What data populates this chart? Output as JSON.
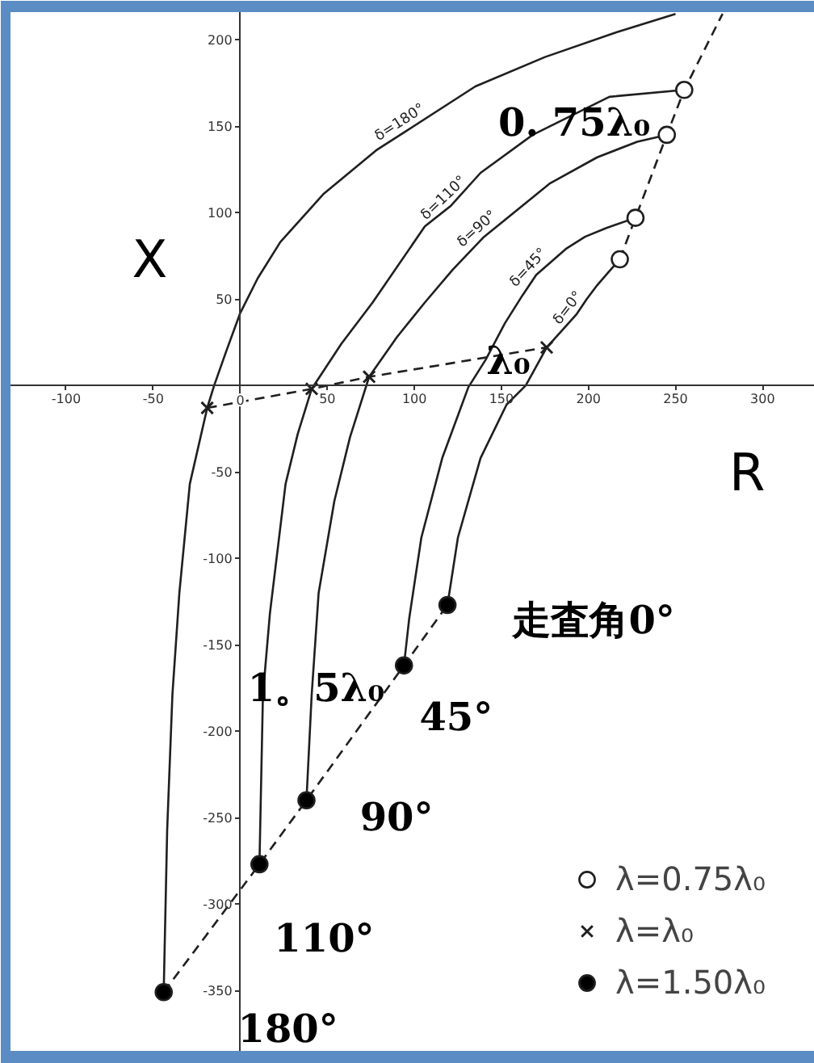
{
  "chart_data": {
    "type": "line",
    "xlabel": "R",
    "ylabel": "X",
    "xlim": [
      -132,
      330
    ],
    "ylim": [
      -385,
      216
    ],
    "xticks": [
      -100,
      -50,
      0,
      50,
      100,
      150,
      200,
      250,
      300
    ],
    "yticks": [
      -350,
      -300,
      -250,
      -200,
      -150,
      -100,
      -50,
      50,
      100,
      150,
      200
    ],
    "legend": "bottom right",
    "line_style": "solid",
    "series": [
      {
        "name": "δ=180°",
        "color": "#1f1f1f",
        "x": [
          -44,
          -42,
          -39,
          -35,
          -29,
          -19,
          -15,
          -8,
          0,
          10,
          23,
          48,
          78,
          95,
          135,
          175,
          215,
          250
        ],
        "values": [
          -351,
          -257,
          -179,
          -120,
          -57,
          -13,
          0,
          20,
          42,
          62,
          83,
          111,
          136,
          147,
          173,
          190,
          204,
          215
        ]
      },
      {
        "name": "δ=110°",
        "color": "#1f1f1f",
        "x": [
          11,
          13,
          17,
          26,
          33,
          41,
          58,
          76,
          106,
          121,
          138,
          168,
          212,
          255
        ],
        "values": [
          -277,
          -179,
          -132,
          -57,
          -28,
          -2,
          24,
          48,
          92,
          104,
          123,
          145,
          167,
          171
        ]
      },
      {
        "name": "δ=90°",
        "color": "#1f1f1f",
        "x": [
          38,
          41,
          45,
          54,
          63,
          74,
          90,
          106,
          122,
          140,
          178,
          205,
          228,
          245
        ],
        "values": [
          -240,
          -179,
          -120,
          -67,
          -30,
          5,
          28,
          48,
          67,
          86,
          117,
          132,
          141,
          145
        ]
      },
      {
        "name": "δ=45°",
        "color": "#1f1f1f",
        "x": [
          94,
          97,
          104,
          116,
          131,
          141,
          152,
          162,
          170,
          187,
          198,
          210,
          227
        ],
        "values": [
          -162,
          -135,
          -88,
          -42,
          -1,
          15,
          36,
          52,
          64,
          79,
          86,
          91,
          97
        ]
      },
      {
        "name": "δ=0°",
        "color": "#1f1f1f",
        "x": [
          119,
          125,
          138,
          153,
          164,
          176,
          185,
          193,
          199,
          205,
          211,
          218
        ],
        "values": [
          -127,
          -88,
          -42,
          -11,
          0,
          22,
          32,
          41,
          50,
          58,
          65,
          73
        ]
      },
      {
        "type": "line",
        "line_style": "dashed",
        "color": "#1f1f1f",
        "x": [
          218,
          227,
          245,
          255,
          277
        ],
        "values": [
          73,
          97,
          145,
          171,
          215
        ]
      },
      {
        "type": "line",
        "line_style": "dashed",
        "color": "#1f1f1f",
        "x": [
          -19,
          41,
          74,
          176
        ],
        "values": [
          -13,
          -2,
          5,
          22
        ]
      },
      {
        "type": "line",
        "line_style": "dashed",
        "color": "#1f1f1f",
        "x": [
          -44,
          11,
          38,
          94,
          119
        ],
        "values": [
          -351,
          -277,
          -240,
          -162,
          -127
        ]
      },
      {
        "type": "scatter",
        "name": "λ=0.75λ₀",
        "marker": "circle",
        "color": "#ffffff",
        "x": [
          218,
          227,
          245,
          255
        ],
        "values": [
          73,
          97,
          145,
          171
        ]
      },
      {
        "type": "scatter",
        "name": "λ=λ₀",
        "marker": "cross",
        "color": "#1f1f1f",
        "x": [
          -19,
          41,
          74,
          176
        ],
        "values": [
          -13,
          -2,
          5,
          22
        ]
      },
      {
        "type": "scatter",
        "name": "λ=1.50λ₀",
        "marker": "circle",
        "color": "#000000",
        "x": [
          -44,
          11,
          38,
          94,
          119
        ],
        "values": [
          -351,
          -277,
          -240,
          -162,
          -127
        ]
      }
    ],
    "annotations": [
      "0. 75λ₀",
      "λ₀",
      "走査角0°",
      "1。5λ₀",
      "45°",
      "90°",
      "110°",
      "180°"
    ]
  }
}
